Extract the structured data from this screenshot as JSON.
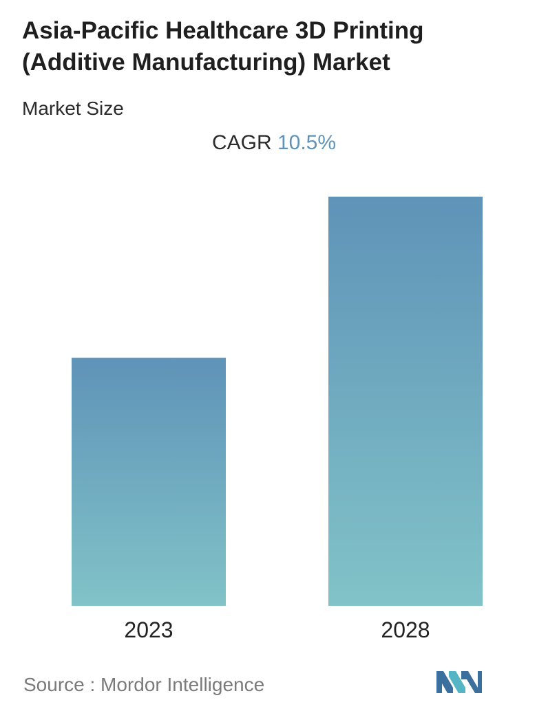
{
  "header": {
    "title": "Asia-Pacific Healthcare 3D Printing (Additive Manufacturing) Market",
    "subtitle": "Market Size"
  },
  "cagr": {
    "label": "CAGR",
    "value": "10.5%"
  },
  "chart_data": {
    "type": "bar",
    "categories": [
      "2023",
      "2028"
    ],
    "values": [
      1.0,
      1.65
    ],
    "ylim": [
      0,
      1.65
    ],
    "grid": false,
    "colors": {
      "bar_top": "#5f93b8",
      "bar_bottom": "#81c3c8"
    }
  },
  "footer": {
    "source": "Source :  Mordor Intelligence",
    "logo_icon": "mordor-intelligence-logo-icon",
    "logo_colors": [
      "#3a6f9e",
      "#56b5c4"
    ]
  }
}
